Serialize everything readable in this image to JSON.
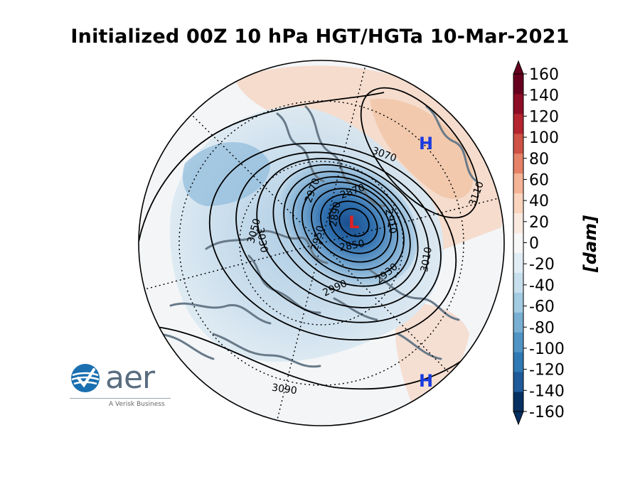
{
  "title": "Initialized 00Z 10 hPa HGT/HGTa 10-Mar-2021",
  "colorbar": {
    "unit_label": "[dam]",
    "ticks": [
      160,
      140,
      120,
      100,
      80,
      60,
      40,
      20,
      0,
      -20,
      -40,
      -60,
      -80,
      -100,
      -120,
      -140,
      -160
    ],
    "tick_labels": [
      "160",
      "140",
      "120",
      "100",
      "80",
      "60",
      "40",
      "20",
      "0",
      "-20",
      "-40",
      "-60",
      "-80",
      "-100",
      "-120",
      "-140",
      "-160"
    ],
    "range": [
      -160,
      160
    ],
    "colors": [
      "#053061",
      "#1f5a9a",
      "#2f79b5",
      "#4f94c4",
      "#79afd2",
      "#a3cbe2",
      "#c7dfed",
      "#e1edf4",
      "#f7f7f7",
      "#fae9df",
      "#fbd4bd",
      "#f6b496",
      "#e58267",
      "#cf5246",
      "#b42530",
      "#8e0d26",
      "#67001f"
    ]
  },
  "map": {
    "projection": "north polar stereographic",
    "centers": [
      {
        "type": "L",
        "color": "#dd2222"
      },
      {
        "type": "H",
        "color": "#1a3be0"
      },
      {
        "type": "H",
        "color": "#1a3be0"
      }
    ],
    "contour_labels": [
      "3070",
      "3110",
      "3050",
      "3030",
      "2970",
      "2870",
      "2910",
      "2890",
      "2950",
      "2850",
      "2930",
      "2990",
      "3010",
      "3090"
    ]
  },
  "logo": {
    "word": "aer",
    "tagline": "A Verisk Business"
  }
}
